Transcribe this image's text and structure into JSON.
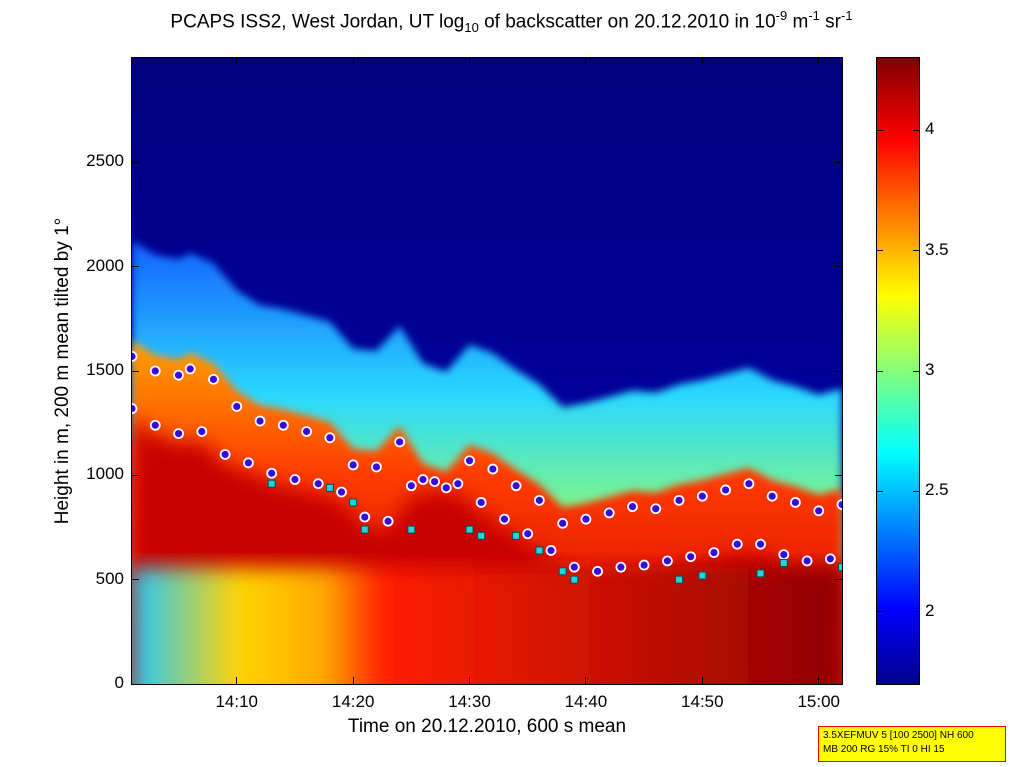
{
  "title": {
    "prefix": "PCAPS ISS2, West Jordan, UT log",
    "sub": "10",
    "middle": " of backscatter on 20.12.2010 in 10",
    "sup1": "-9",
    "unit1": " m",
    "sup2": "-1",
    "unit2": " sr",
    "sup3": "-1"
  },
  "chart_data": {
    "type": "heatmap",
    "xlabel": "Time on 20.12.2010, 600 s mean",
    "ylabel": "Height in m, 200 m mean tilted by 1°",
    "x_range": [
      "14:01",
      "15:02"
    ],
    "x_ticks": [
      "14:10",
      "14:20",
      "14:30",
      "14:40",
      "14:50",
      "15:00"
    ],
    "ylim": [
      0,
      3000
    ],
    "y_ticks": [
      "0",
      "500",
      "1000",
      "1500",
      "2000",
      "2500"
    ],
    "colorbar": {
      "range": [
        1.7,
        4.3
      ],
      "ticks": [
        "2",
        "2.5",
        "3",
        "3.5",
        "4"
      ],
      "colormap": "jet"
    },
    "series": [
      {
        "marker": "purple dots with white outline",
        "color": "#3a0bd8",
        "x": [
          "14:01",
          "14:03",
          "14:05",
          "14:06",
          "14:08",
          "14:10",
          "14:12",
          "14:14",
          "14:16",
          "14:18",
          "14:20",
          "14:22",
          "14:24",
          "14:26",
          "14:28",
          "14:30",
          "14:32",
          "14:34",
          "14:36",
          "14:38",
          "14:40",
          "14:42",
          "14:44",
          "14:46",
          "14:48",
          "14:50",
          "14:52",
          "14:54",
          "14:56",
          "14:58",
          "15:00",
          "15:02"
        ],
        "y": [
          1570,
          1500,
          1480,
          1510,
          1460,
          1330,
          1260,
          1240,
          1210,
          1180,
          1050,
          1040,
          1160,
          980,
          940,
          1070,
          1030,
          950,
          880,
          770,
          790,
          820,
          850,
          840,
          880,
          900,
          930,
          960,
          900,
          870,
          830,
          860
        ]
      },
      {
        "marker": "purple dots with white outline",
        "color": "#3a0bd8",
        "x": [
          "14:01",
          "14:03",
          "14:05",
          "14:07",
          "14:09",
          "14:11",
          "14:13",
          "14:15",
          "14:17",
          "14:19",
          "14:21",
          "14:23",
          "14:25",
          "14:27",
          "14:29",
          "14:31",
          "14:33",
          "14:35",
          "14:37",
          "14:39",
          "14:41",
          "14:43",
          "14:45",
          "14:47",
          "14:49",
          "14:51",
          "14:53",
          "14:55",
          "14:57",
          "14:59",
          "15:01"
        ],
        "y": [
          1320,
          1240,
          1200,
          1210,
          1100,
          1060,
          1010,
          980,
          960,
          920,
          800,
          780,
          950,
          970,
          960,
          870,
          790,
          720,
          640,
          560,
          540,
          560,
          570,
          590,
          610,
          630,
          670,
          670,
          620,
          590,
          600
        ]
      },
      {
        "marker": "cyan squares",
        "color": "#22d3d9",
        "x": [
          "14:13",
          "14:18",
          "14:20",
          "14:21",
          "14:25",
          "14:30",
          "14:31",
          "14:34",
          "14:36",
          "14:38",
          "14:39",
          "14:48",
          "14:50",
          "14:55",
          "14:57",
          "15:02"
        ],
        "y": [
          960,
          940,
          870,
          740,
          740,
          740,
          710,
          710,
          640,
          540,
          500,
          500,
          520,
          530,
          580,
          560
        ]
      }
    ]
  },
  "info_box": {
    "line1": "3.5XEFMUV 5 [100 2500] NH 600",
    "line2": "MB 200 RG 15% TI 0 HI 15"
  }
}
